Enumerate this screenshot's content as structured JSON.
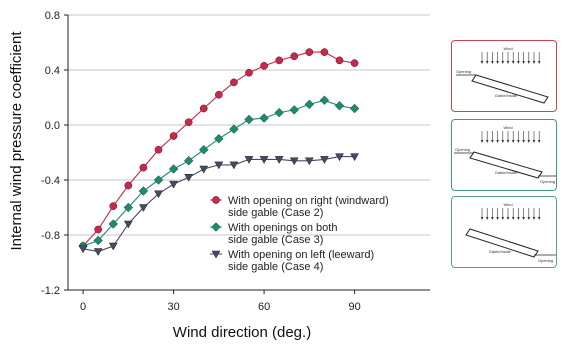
{
  "chart_data": {
    "type": "line",
    "xlabel": "Wind direction (deg.)",
    "ylabel": "Internal wind pressure coefficient",
    "xlim": [
      -5,
      115
    ],
    "ylim": [
      -1.2,
      0.8
    ],
    "xticks": [
      0,
      30,
      60,
      90
    ],
    "xtick_labels": [
      "0",
      "30",
      "60",
      "90"
    ],
    "yticks": [
      -1.2,
      -0.8,
      -0.4,
      0.0,
      0.4,
      0.8
    ],
    "ytick_labels": [
      "-1.2",
      "-0.8",
      "-0.4",
      "0.0",
      "0.4",
      "0.8"
    ],
    "grid": "horizontal",
    "legend_position": "lower-right inside plot",
    "series": [
      {
        "name": "With opening on right (windward) side gable (Case 2)",
        "legend_lines": [
          "With opening on right (windward)",
          "side gable (Case 2)"
        ],
        "marker": "circle",
        "color": "#c8284a",
        "x": [
          0,
          5,
          10,
          15,
          20,
          25,
          30,
          35,
          40,
          45,
          50,
          55,
          60,
          65,
          70,
          75,
          80,
          85,
          90
        ],
        "values": [
          -0.88,
          -0.76,
          -0.59,
          -0.44,
          -0.31,
          -0.18,
          -0.08,
          0.02,
          0.12,
          0.22,
          0.31,
          0.38,
          0.43,
          0.47,
          0.5,
          0.53,
          0.53,
          0.47,
          0.45
        ]
      },
      {
        "name": "With openings on both side gable (Case 3)",
        "legend_lines": [
          "With openings on both",
          "side gable (Case 3)"
        ],
        "marker": "diamond",
        "color": "#1f8a6e",
        "x": [
          0,
          5,
          10,
          15,
          20,
          25,
          30,
          35,
          40,
          45,
          50,
          55,
          60,
          65,
          70,
          75,
          80,
          85,
          90
        ],
        "values": [
          -0.88,
          -0.84,
          -0.72,
          -0.6,
          -0.48,
          -0.4,
          -0.32,
          -0.26,
          -0.18,
          -0.1,
          -0.03,
          0.04,
          0.05,
          0.09,
          0.11,
          0.15,
          0.18,
          0.14,
          0.12
        ]
      },
      {
        "name": "With opening on left (leeward) side gable (Case 4)",
        "legend_lines": [
          "With opening on left (leeward)",
          "side gable (Case 4)"
        ],
        "marker": "triangle-down",
        "color": "#454a66",
        "x": [
          0,
          5,
          10,
          15,
          20,
          25,
          30,
          35,
          40,
          45,
          50,
          55,
          60,
          65,
          70,
          75,
          80,
          85,
          90
        ],
        "values": [
          -0.9,
          -0.92,
          -0.88,
          -0.72,
          -0.6,
          -0.5,
          -0.43,
          -0.38,
          -0.32,
          -0.29,
          -0.29,
          -0.25,
          -0.25,
          -0.25,
          -0.26,
          -0.26,
          -0.25,
          -0.23,
          -0.23
        ]
      }
    ]
  },
  "side_panels": [
    {
      "border_color": "#c9474e",
      "wind_label": "Wind",
      "left_label": "Opening",
      "center_label": "Gable/Inside",
      "right_label": ""
    },
    {
      "border_color": "#3e9a87",
      "wind_label": "Wind",
      "left_label": "Opening",
      "center_label": "Gable/Inside",
      "right_label": "Opening"
    },
    {
      "border_color": "#5aa08c",
      "wind_label": "Wind",
      "left_label": "",
      "center_label": "Gable/Inside",
      "right_label": "Opening"
    }
  ]
}
